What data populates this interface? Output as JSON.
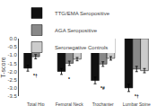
{
  "chart_data": {
    "type": "bar",
    "categories": [
      "Total Hip",
      "Femoral Neck",
      "Trochanter",
      "Lumbar Spine"
    ],
    "series": [
      {
        "name": "TTG/EMA Seropositive",
        "color": "#111111",
        "values": [
          -1.8,
          -2.0,
          -2.55,
          -3.0
        ],
        "errors": [
          0.18,
          0.18,
          0.2,
          0.22
        ]
      },
      {
        "name": "AGA Seropositive",
        "color": "#888888",
        "values": [
          -1.1,
          -1.5,
          -1.55,
          -1.85
        ],
        "errors": [
          0.13,
          0.13,
          0.14,
          0.16
        ]
      },
      {
        "name": "Seronegative Controls",
        "color": "#cccccc",
        "values": [
          -0.55,
          -1.25,
          -1.2,
          -1.95
        ],
        "errors": [
          0.1,
          0.1,
          0.11,
          0.13
        ]
      }
    ],
    "ylabel": "T-score",
    "ylim": [
      -3.5,
      0.0
    ],
    "yticks": [
      {
        "value": 0.0,
        "label": "0.0"
      },
      -0.5,
      {
        "value": -1.0,
        "label": "-1.0"
      },
      -1.5,
      {
        "value": -2.0,
        "label": "-2.0"
      },
      -2.5,
      {
        "value": -3.0,
        "label": "-3.0"
      },
      -3.5
    ],
    "grid": false,
    "legend": "top",
    "annotations": [
      {
        "category": "Total Hip",
        "text": "*†"
      },
      {
        "category": "Femoral Neck",
        "text": "*"
      },
      {
        "category": "Trochanter",
        "text": "*#"
      },
      {
        "category": "Lumbar Spine",
        "text": "*†"
      }
    ]
  }
}
